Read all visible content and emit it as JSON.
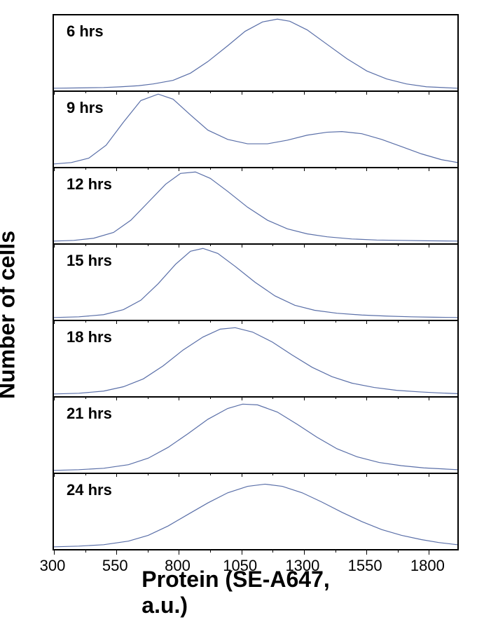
{
  "xlabel": "Protein (SE-A647, a.u.)",
  "ylabel": "Number of cells",
  "xlim": [
    300,
    1925
  ],
  "xticks_major": [
    300,
    550,
    800,
    1050,
    1300,
    1550,
    1800
  ],
  "xtick_labels": [
    "300",
    "550",
    "800",
    "1050",
    "1300",
    "1550",
    "1800"
  ],
  "xticks_minor": [
    425,
    675,
    925,
    1175,
    1425,
    1675
  ],
  "line_color": "#5a6fa8",
  "line_width": 1.2,
  "background_color": "#ffffff",
  "border_color": "#000000",
  "label_fontsize": 22,
  "axis_label_fontsize": 32,
  "panels": [
    {
      "label": "6 hrs",
      "ymax": 100,
      "points": [
        [
          300,
          1
        ],
        [
          400,
          1.5
        ],
        [
          500,
          2
        ],
        [
          570,
          3
        ],
        [
          640,
          4.5
        ],
        [
          700,
          7
        ],
        [
          780,
          12
        ],
        [
          850,
          22
        ],
        [
          920,
          38
        ],
        [
          1000,
          60
        ],
        [
          1070,
          80
        ],
        [
          1140,
          93
        ],
        [
          1200,
          97
        ],
        [
          1250,
          94
        ],
        [
          1320,
          82
        ],
        [
          1400,
          62
        ],
        [
          1480,
          42
        ],
        [
          1560,
          25
        ],
        [
          1640,
          14
        ],
        [
          1720,
          7
        ],
        [
          1800,
          3
        ],
        [
          1925,
          1
        ]
      ]
    },
    {
      "label": "9 hrs",
      "ymax": 100,
      "points": [
        [
          300,
          2
        ],
        [
          370,
          4
        ],
        [
          440,
          10
        ],
        [
          510,
          28
        ],
        [
          580,
          60
        ],
        [
          650,
          90
        ],
        [
          720,
          99
        ],
        [
          780,
          92
        ],
        [
          850,
          70
        ],
        [
          920,
          49
        ],
        [
          1000,
          36
        ],
        [
          1080,
          30
        ],
        [
          1160,
          30
        ],
        [
          1240,
          35
        ],
        [
          1320,
          42
        ],
        [
          1400,
          46
        ],
        [
          1460,
          47
        ],
        [
          1540,
          44
        ],
        [
          1620,
          36
        ],
        [
          1700,
          26
        ],
        [
          1780,
          16
        ],
        [
          1860,
          8
        ],
        [
          1925,
          4
        ]
      ]
    },
    {
      "label": "12 hrs",
      "ymax": 100,
      "points": [
        [
          300,
          1
        ],
        [
          380,
          2
        ],
        [
          460,
          5
        ],
        [
          540,
          13
        ],
        [
          610,
          30
        ],
        [
          680,
          55
        ],
        [
          750,
          80
        ],
        [
          810,
          95
        ],
        [
          870,
          97
        ],
        [
          930,
          88
        ],
        [
          1000,
          70
        ],
        [
          1080,
          48
        ],
        [
          1160,
          30
        ],
        [
          1240,
          18
        ],
        [
          1320,
          11
        ],
        [
          1400,
          7
        ],
        [
          1500,
          4
        ],
        [
          1600,
          2.5
        ],
        [
          1700,
          2
        ],
        [
          1800,
          1.5
        ],
        [
          1925,
          1
        ]
      ]
    },
    {
      "label": "15 hrs",
      "ymax": 100,
      "points": [
        [
          300,
          1
        ],
        [
          400,
          2
        ],
        [
          500,
          5
        ],
        [
          580,
          12
        ],
        [
          650,
          25
        ],
        [
          720,
          48
        ],
        [
          790,
          75
        ],
        [
          850,
          93
        ],
        [
          900,
          97
        ],
        [
          960,
          90
        ],
        [
          1030,
          72
        ],
        [
          1110,
          50
        ],
        [
          1190,
          31
        ],
        [
          1270,
          18
        ],
        [
          1350,
          11
        ],
        [
          1440,
          7
        ],
        [
          1540,
          4.5
        ],
        [
          1640,
          3
        ],
        [
          1740,
          2
        ],
        [
          1830,
          1.5
        ],
        [
          1925,
          1
        ]
      ]
    },
    {
      "label": "18 hrs",
      "ymax": 100,
      "points": [
        [
          300,
          1
        ],
        [
          400,
          2
        ],
        [
          500,
          5
        ],
        [
          580,
          11
        ],
        [
          660,
          22
        ],
        [
          740,
          40
        ],
        [
          820,
          62
        ],
        [
          900,
          80
        ],
        [
          970,
          91
        ],
        [
          1030,
          93
        ],
        [
          1100,
          87
        ],
        [
          1180,
          73
        ],
        [
          1260,
          55
        ],
        [
          1340,
          38
        ],
        [
          1420,
          25
        ],
        [
          1500,
          16
        ],
        [
          1590,
          10
        ],
        [
          1680,
          6
        ],
        [
          1770,
          4
        ],
        [
          1850,
          2.5
        ],
        [
          1925,
          1.5
        ]
      ]
    },
    {
      "label": "21 hrs",
      "ymax": 100,
      "points": [
        [
          300,
          1
        ],
        [
          400,
          2
        ],
        [
          500,
          4
        ],
        [
          600,
          9
        ],
        [
          680,
          18
        ],
        [
          760,
          33
        ],
        [
          840,
          52
        ],
        [
          920,
          72
        ],
        [
          1000,
          87
        ],
        [
          1060,
          93
        ],
        [
          1120,
          92
        ],
        [
          1200,
          82
        ],
        [
          1280,
          65
        ],
        [
          1360,
          47
        ],
        [
          1440,
          31
        ],
        [
          1520,
          20
        ],
        [
          1610,
          12
        ],
        [
          1700,
          7.5
        ],
        [
          1790,
          4.5
        ],
        [
          1870,
          3
        ],
        [
          1925,
          2
        ]
      ]
    },
    {
      "label": "24 hrs",
      "ymax": 100,
      "points": [
        [
          300,
          1
        ],
        [
          400,
          2
        ],
        [
          500,
          4
        ],
        [
          600,
          9
        ],
        [
          680,
          17
        ],
        [
          760,
          30
        ],
        [
          840,
          46
        ],
        [
          920,
          62
        ],
        [
          1000,
          76
        ],
        [
          1080,
          85
        ],
        [
          1150,
          88
        ],
        [
          1220,
          85
        ],
        [
          1300,
          76
        ],
        [
          1380,
          63
        ],
        [
          1460,
          49
        ],
        [
          1540,
          36
        ],
        [
          1620,
          25
        ],
        [
          1700,
          17
        ],
        [
          1780,
          11
        ],
        [
          1850,
          7
        ],
        [
          1925,
          4
        ]
      ]
    }
  ]
}
